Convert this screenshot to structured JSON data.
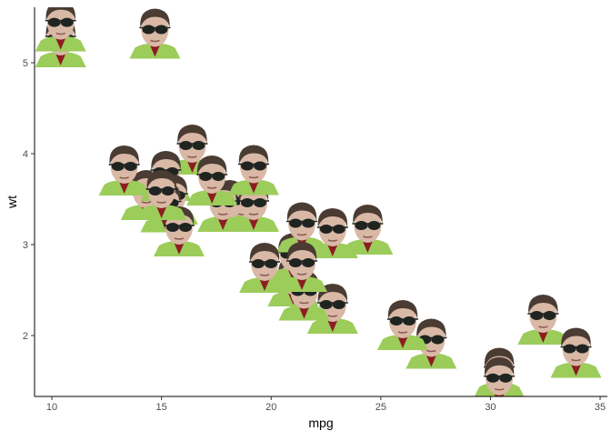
{
  "chart_data": {
    "type": "scatter",
    "x_label": "mpg",
    "y_label": "wt",
    "x": [
      21.0,
      21.0,
      22.8,
      21.4,
      18.7,
      18.1,
      14.3,
      24.4,
      22.8,
      19.2,
      17.8,
      16.4,
      17.3,
      15.2,
      10.4,
      10.4,
      14.7,
      32.4,
      30.4,
      33.9,
      21.5,
      15.5,
      15.2,
      13.3,
      19.2,
      27.3,
      26.0,
      30.4,
      15.8,
      19.7,
      15.0,
      21.4
    ],
    "y": [
      2.62,
      2.875,
      2.32,
      3.215,
      3.44,
      3.46,
      3.57,
      3.19,
      3.15,
      3.44,
      3.44,
      4.07,
      3.73,
      3.78,
      5.25,
      5.424,
      5.345,
      2.2,
      1.615,
      1.835,
      2.465,
      3.52,
      3.435,
      3.84,
      3.845,
      1.935,
      2.14,
      1.513,
      3.17,
      2.77,
      3.57,
      2.78
    ],
    "xlim": [
      9.21,
      35.33
    ],
    "ylim": [
      1.33,
      5.61
    ],
    "xticks": [
      10,
      15,
      20,
      25,
      30,
      35
    ],
    "yticks": [
      2,
      3,
      4,
      5
    ],
    "grid": false
  }
}
